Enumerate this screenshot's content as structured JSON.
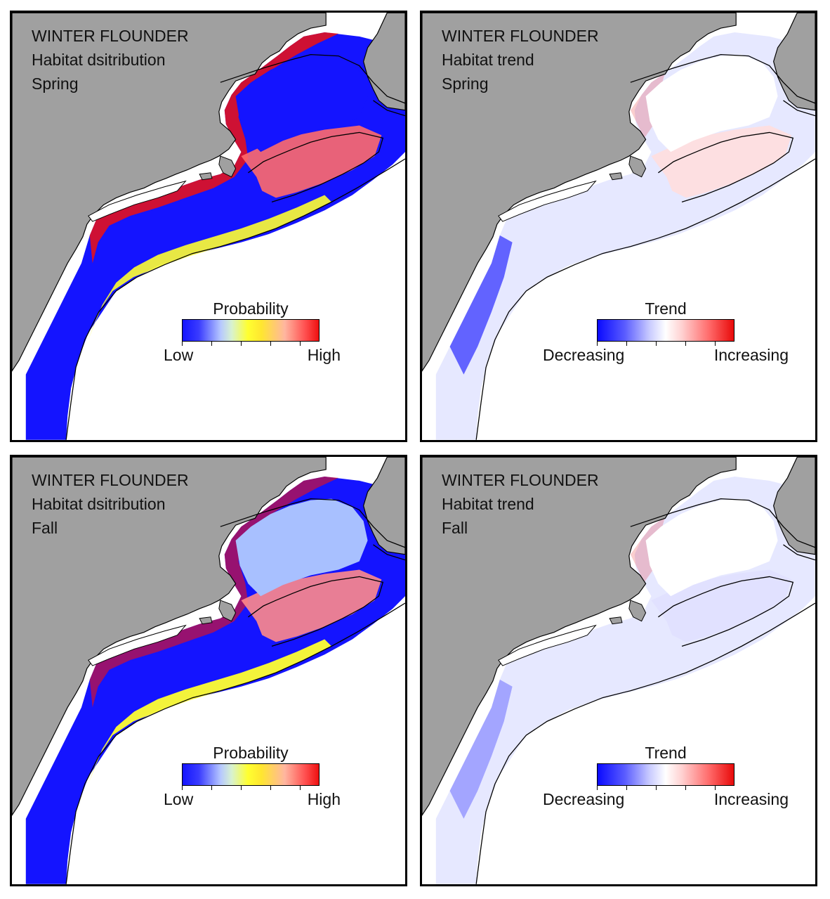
{
  "figure": {
    "panels": [
      {
        "id": "spring-distribution",
        "title_lines": [
          "WINTER FLOUNDER",
          "Habitat dsitribution",
          "Spring"
        ],
        "legend": {
          "title": "Probability",
          "low": "Low",
          "high": "High",
          "scale": "probability"
        }
      },
      {
        "id": "spring-trend",
        "title_lines": [
          "WINTER FLOUNDER",
          "Habitat trend",
          "Spring"
        ],
        "legend": {
          "title": "Trend",
          "low": "Decreasing",
          "high": "Increasing",
          "scale": "trend"
        }
      },
      {
        "id": "fall-distribution",
        "title_lines": [
          "WINTER FLOUNDER",
          "Habitat dsitribution",
          "Fall"
        ],
        "legend": {
          "title": "Probability",
          "low": "Low",
          "high": "High",
          "scale": "probability"
        }
      },
      {
        "id": "fall-trend",
        "title_lines": [
          "WINTER FLOUNDER",
          "Habitat trend",
          "Fall"
        ],
        "legend": {
          "title": "Trend",
          "low": "Decreasing",
          "high": "Increasing",
          "scale": "trend"
        }
      }
    ]
  },
  "colors": {
    "land": "#a0a0a0",
    "ocean": "#ffffff",
    "outline": "#000000",
    "low_probability": "#1414ff",
    "mid_probability": "#ffff30",
    "high_probability": "#ee1010",
    "decreasing": "#0a0aff",
    "increasing": "#e80a0a"
  }
}
